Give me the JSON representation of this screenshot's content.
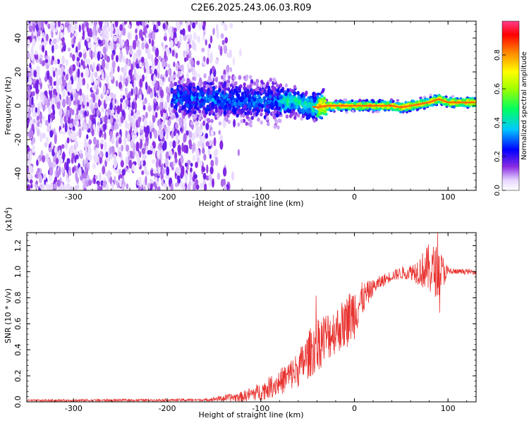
{
  "chart_data": [
    {
      "type": "heatmap",
      "title": "C2E6.2025.243.06.03.R09",
      "xlabel": "Height of straight line (km)",
      "ylabel": "Frequency (Hz)",
      "xlim": [
        -350,
        130
      ],
      "ylim": [
        -50,
        50
      ],
      "x_ticks": [
        -300,
        -200,
        -100,
        0,
        100
      ],
      "y_ticks": [
        -40,
        -20,
        0,
        20,
        40
      ],
      "colorbar": {
        "label": "Normalized spectral amplitude",
        "range": [
          0,
          1
        ],
        "ticks": [
          "0.0",
          "0.2",
          "0.4",
          "0.6",
          "0.8"
        ],
        "colormap": "rainbow"
      },
      "ridge": {
        "x": [
          -190,
          -160,
          -130,
          -100,
          -80,
          -70,
          -60,
          -50,
          -40,
          -30,
          -20,
          0,
          20,
          40,
          50,
          60,
          70,
          80,
          90,
          100,
          130
        ],
        "freq": [
          5,
          4,
          3,
          3,
          2,
          3,
          2,
          0,
          -1,
          0,
          0,
          0,
          0,
          0,
          -1,
          0,
          1,
          2,
          4,
          2,
          2
        ]
      },
      "noise_region": {
        "x_end": -190,
        "fade_end": -120,
        "freq_spread": 48
      }
    },
    {
      "type": "line",
      "title": "",
      "xlabel": "Height of straight line (km)",
      "ylabel": "SNR (10 * v/v)",
      "exponent_label": "(x10",
      "exponent_value": "4",
      "exponent_close": ")",
      "xlim": [
        -350,
        130
      ],
      "ylim": [
        0,
        1.3
      ],
      "x_ticks": [
        -300,
        -200,
        -100,
        0,
        100
      ],
      "y_ticks": [
        "0.0",
        "0.2",
        "0.4",
        "0.6",
        "0.8",
        "1.0",
        "1.2"
      ],
      "series": [
        {
          "color": "#e8322f",
          "envelope": {
            "x": [
              -350,
              -160,
              -120,
              -100,
              -80,
              -60,
              -50,
              -40,
              -30,
              -20,
              -10,
              0,
              10,
              20,
              30,
              40,
              50,
              60,
              70,
              80,
              90,
              100,
              110,
              130
            ],
            "y": [
              0.01,
              0.015,
              0.04,
              0.08,
              0.15,
              0.25,
              0.35,
              0.45,
              0.5,
              0.55,
              0.6,
              0.7,
              0.8,
              0.88,
              0.93,
              0.97,
              0.99,
              1.0,
              1.01,
              1.02,
              1.0,
              1.0,
              1.0,
              1.0
            ]
          },
          "spread": {
            "x": [
              -350,
              -160,
              -120,
              -100,
              -80,
              -60,
              -50,
              -40,
              -30,
              -20,
              -10,
              0,
              10,
              20,
              40,
              60,
              70,
              80,
              90,
              95,
              100,
              110,
              130
            ],
            "y": [
              0.008,
              0.01,
              0.04,
              0.07,
              0.1,
              0.14,
              0.18,
              0.22,
              0.2,
              0.18,
              0.2,
              0.22,
              0.12,
              0.06,
              0.04,
              0.06,
              0.12,
              0.2,
              0.2,
              0.12,
              0.04,
              0.02,
              0.02
            ]
          }
        }
      ]
    }
  ]
}
